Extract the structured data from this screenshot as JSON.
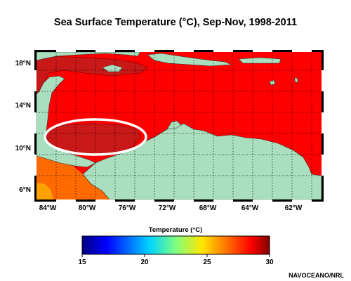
{
  "title": "Sea Surface Temperature (°C), Sep-Nov, 1998-2011",
  "map": {
    "lat_ticks": [
      "18°N",
      "14°N",
      "10°N",
      "6°N"
    ],
    "lon_ticks": [
      "84°W",
      "80°W",
      "76°W",
      "72°W",
      "68°W",
      "64°W",
      "62°W"
    ],
    "colors": {
      "sea_warm": "#ff0000",
      "sea_hot": "#c81818",
      "sea_cool": "#ff6a00",
      "sea_cooler": "#ffa200",
      "land": "#a9dfbf",
      "highlight": "#ffffff"
    }
  },
  "colorbar": {
    "label": "Temperature (°C)",
    "ticks": [
      "15",
      "20",
      "25",
      "30"
    ],
    "range": [
      15,
      30
    ]
  },
  "credit": "NAVOCEANO/NRL"
}
